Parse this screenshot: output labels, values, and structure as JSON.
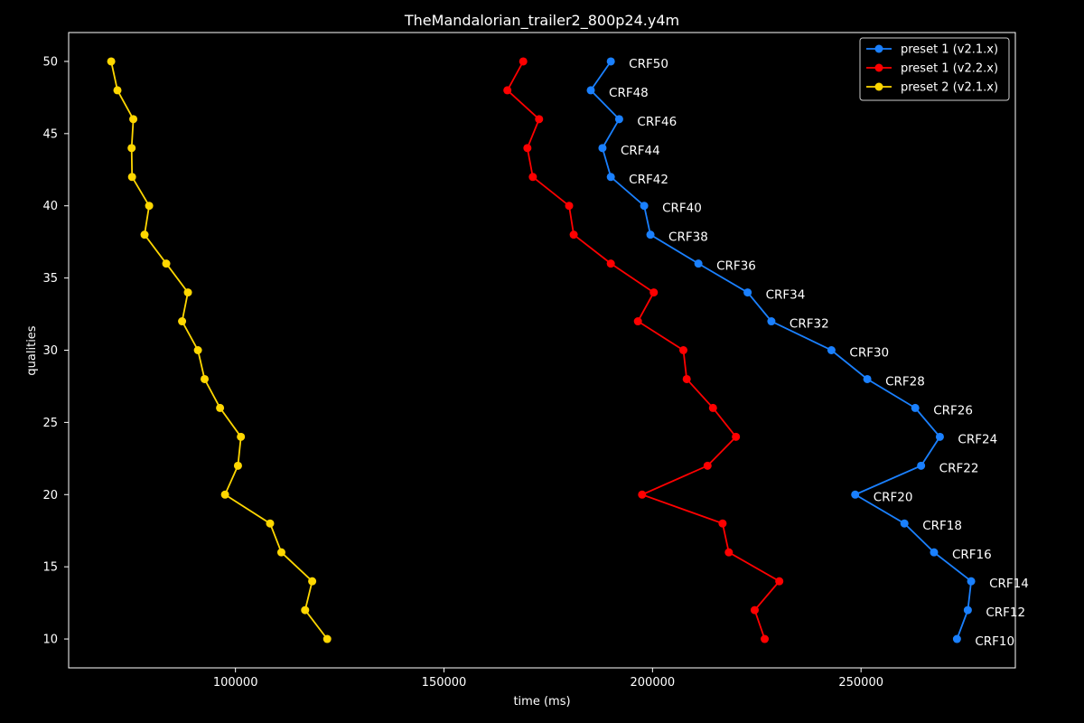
{
  "chart_data": {
    "type": "line",
    "title": "TheMandalorian_trailer2_800p24.y4m",
    "xlabel": "time (ms)",
    "ylabel": "qualities",
    "xlim": [
      60000,
      287000
    ],
    "ylim": [
      8,
      52
    ],
    "xticks": [
      100000,
      150000,
      200000,
      250000
    ],
    "yticks": [
      10,
      15,
      20,
      25,
      30,
      35,
      40,
      45,
      50
    ],
    "legend_position": "top-right",
    "annotation_series": 0,
    "series": [
      {
        "name": "preset 1 (v2.1.x)",
        "color": "#1a80ff",
        "points": [
          {
            "q": 50,
            "t": 190000,
            "label": "CRF50"
          },
          {
            "q": 48,
            "t": 185200,
            "label": "CRF48"
          },
          {
            "q": 46,
            "t": 192000,
            "label": "CRF46"
          },
          {
            "q": 44,
            "t": 188000,
            "label": "CRF44"
          },
          {
            "q": 42,
            "t": 190000,
            "label": "CRF42"
          },
          {
            "q": 40,
            "t": 198000,
            "label": "CRF40"
          },
          {
            "q": 38,
            "t": 199500,
            "label": "CRF38"
          },
          {
            "q": 36,
            "t": 211000,
            "label": "CRF36"
          },
          {
            "q": 34,
            "t": 222800,
            "label": "CRF34"
          },
          {
            "q": 32,
            "t": 228500,
            "label": "CRF32"
          },
          {
            "q": 30,
            "t": 242900,
            "label": "CRF30"
          },
          {
            "q": 28,
            "t": 251500,
            "label": "CRF28"
          },
          {
            "q": 26,
            "t": 263000,
            "label": "CRF26"
          },
          {
            "q": 24,
            "t": 268900,
            "label": "CRF24"
          },
          {
            "q": 22,
            "t": 264400,
            "label": "CRF22"
          },
          {
            "q": 20,
            "t": 248600,
            "label": "CRF20"
          },
          {
            "q": 18,
            "t": 260400,
            "label": "CRF18"
          },
          {
            "q": 16,
            "t": 267500,
            "label": "CRF16"
          },
          {
            "q": 14,
            "t": 276400,
            "label": "CRF14"
          },
          {
            "q": 12,
            "t": 275600,
            "label": "CRF12"
          },
          {
            "q": 10,
            "t": 273000,
            "label": "CRF10"
          }
        ]
      },
      {
        "name": "preset 1 (v2.2.x)",
        "color": "#ff0000",
        "points": [
          {
            "q": 50,
            "t": 169000
          },
          {
            "q": 48,
            "t": 165200
          },
          {
            "q": 46,
            "t": 172800
          },
          {
            "q": 44,
            "t": 170000
          },
          {
            "q": 42,
            "t": 171300
          },
          {
            "q": 40,
            "t": 180000
          },
          {
            "q": 38,
            "t": 181100
          },
          {
            "q": 36,
            "t": 190000
          },
          {
            "q": 34,
            "t": 200300
          },
          {
            "q": 32,
            "t": 196500
          },
          {
            "q": 30,
            "t": 207400
          },
          {
            "q": 28,
            "t": 208200
          },
          {
            "q": 26,
            "t": 214500
          },
          {
            "q": 24,
            "t": 220000
          },
          {
            "q": 22,
            "t": 213200
          },
          {
            "q": 20,
            "t": 197500
          },
          {
            "q": 18,
            "t": 216800
          },
          {
            "q": 16,
            "t": 218300
          },
          {
            "q": 14,
            "t": 230400
          },
          {
            "q": 12,
            "t": 224500
          },
          {
            "q": 10,
            "t": 226900
          }
        ]
      },
      {
        "name": "preset 2 (v2.1.x)",
        "color": "#ffd700",
        "points": [
          {
            "q": 50,
            "t": 70200
          },
          {
            "q": 48,
            "t": 71700
          },
          {
            "q": 46,
            "t": 75500
          },
          {
            "q": 44,
            "t": 75100
          },
          {
            "q": 42,
            "t": 75200
          },
          {
            "q": 40,
            "t": 79300
          },
          {
            "q": 38,
            "t": 78200
          },
          {
            "q": 36,
            "t": 83400
          },
          {
            "q": 34,
            "t": 88600
          },
          {
            "q": 32,
            "t": 87200
          },
          {
            "q": 30,
            "t": 91000
          },
          {
            "q": 28,
            "t": 92600
          },
          {
            "q": 26,
            "t": 96300
          },
          {
            "q": 24,
            "t": 101300
          },
          {
            "q": 22,
            "t": 100600
          },
          {
            "q": 20,
            "t": 97500
          },
          {
            "q": 18,
            "t": 108300
          },
          {
            "q": 16,
            "t": 111000
          },
          {
            "q": 14,
            "t": 118400
          },
          {
            "q": 12,
            "t": 116700
          },
          {
            "q": 10,
            "t": 122000
          }
        ]
      }
    ]
  }
}
